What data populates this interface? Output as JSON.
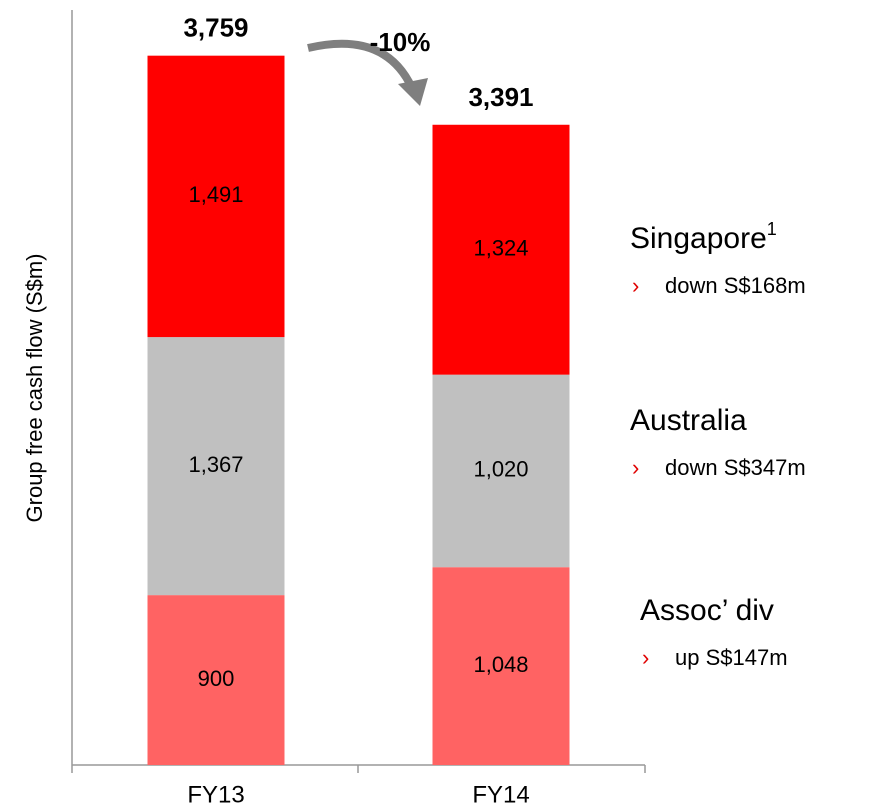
{
  "chart_data": {
    "type": "stacked_bar",
    "y_label": "Group free cash flow (S$m)",
    "categories": [
      "FY13",
      "FY14"
    ],
    "ylim": [
      0,
      4000
    ],
    "series": [
      {
        "name": "Assoc’ div",
        "note": "up S$147m",
        "color": "#ff6363",
        "values": [
          900,
          1048
        ],
        "value_labels": [
          "900",
          "1,048"
        ]
      },
      {
        "name": "Australia",
        "note": "down S$347m",
        "color": "#c0c0c0",
        "values": [
          1367,
          1020
        ],
        "value_labels": [
          "1,367",
          "1,020"
        ]
      },
      {
        "name": "Singapore",
        "footnote": "1",
        "note": "down S$168m",
        "color": "#ff0000",
        "values": [
          1491,
          1324
        ],
        "value_labels": [
          "1,491",
          "1,324"
        ]
      }
    ],
    "totals": {
      "values": [
        3759,
        3391
      ],
      "value_labels": [
        "3,759",
        "3,391"
      ]
    },
    "annotation": "-10%",
    "bullet": "›"
  }
}
